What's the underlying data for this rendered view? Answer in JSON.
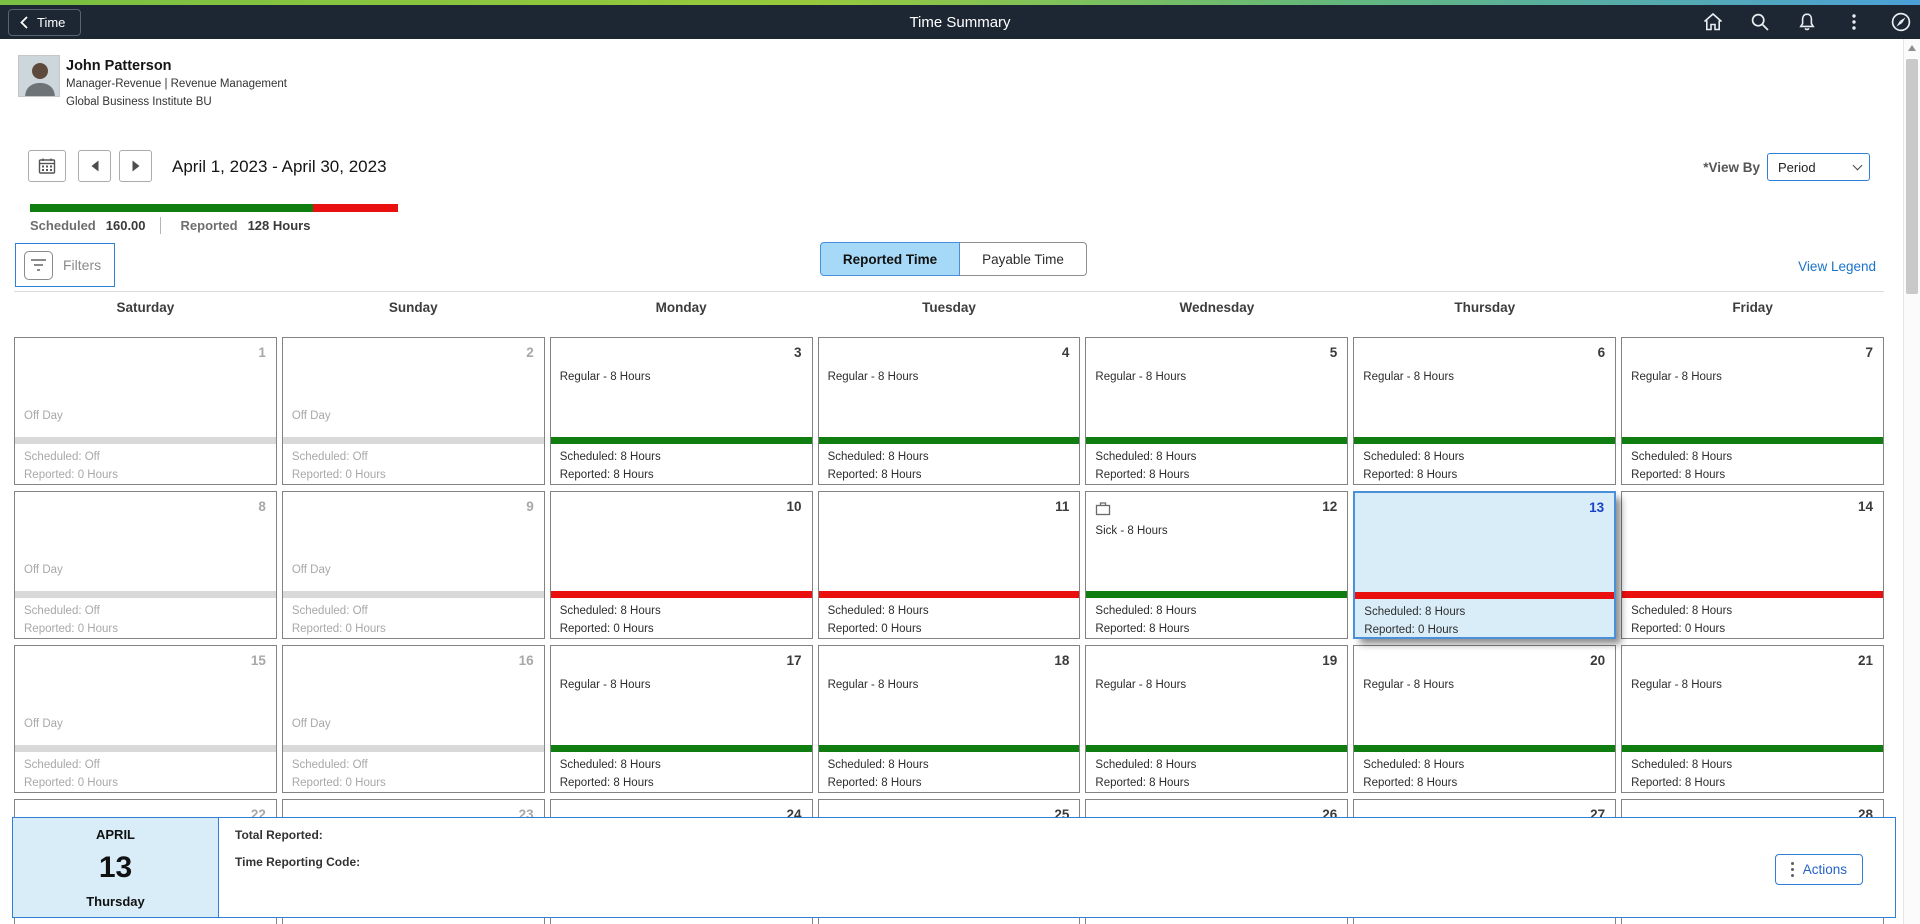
{
  "header": {
    "back_label": "Time",
    "title": "Time Summary",
    "icons": [
      "home-icon",
      "search-icon",
      "notifications-icon",
      "more-options-icon",
      "navbar-compass-icon"
    ]
  },
  "employee": {
    "name": "John Patterson",
    "job_title": "Manager-Revenue | Revenue Management",
    "business_unit": "Global Business Institute BU"
  },
  "period": {
    "range": "April 1, 2023 - April 30, 2023",
    "scheduled_label": "Scheduled",
    "scheduled_value": "160.00",
    "reported_label": "Reported",
    "reported_value": "128 Hours",
    "progress_green_pct": 77,
    "view_by_label": "*View By",
    "view_by_value": "Period"
  },
  "toolbar": {
    "filters_label": "Filters",
    "tabs": [
      {
        "label": "Reported Time",
        "active": true
      },
      {
        "label": "Payable Time",
        "active": false
      }
    ],
    "view_legend_label": "View Legend"
  },
  "calendar": {
    "day_headers": [
      "Saturday",
      "Sunday",
      "Monday",
      "Tuesday",
      "Wednesday",
      "Thursday",
      "Friday"
    ],
    "weeks": [
      [
        {
          "day": "1",
          "kind": "off",
          "event": "Off Day",
          "bar": "gray",
          "scheduled": "Scheduled: Off",
          "reported": "Reported: 0 Hours"
        },
        {
          "day": "2",
          "kind": "off",
          "event": "Off Day",
          "bar": "gray",
          "scheduled": "Scheduled: Off",
          "reported": "Reported: 0 Hours"
        },
        {
          "day": "3",
          "kind": "work",
          "event": "Regular - 8 Hours",
          "bar": "green",
          "scheduled": "Scheduled: 8 Hours",
          "reported": "Reported: 8 Hours"
        },
        {
          "day": "4",
          "kind": "work",
          "event": "Regular - 8 Hours",
          "bar": "green",
          "scheduled": "Scheduled: 8 Hours",
          "reported": "Reported: 8 Hours"
        },
        {
          "day": "5",
          "kind": "work",
          "event": "Regular - 8 Hours",
          "bar": "green",
          "scheduled": "Scheduled: 8 Hours",
          "reported": "Reported: 8 Hours"
        },
        {
          "day": "6",
          "kind": "work",
          "event": "Regular - 8 Hours",
          "bar": "green",
          "scheduled": "Scheduled: 8 Hours",
          "reported": "Reported: 8 Hours"
        },
        {
          "day": "7",
          "kind": "work",
          "event": "Regular - 8 Hours",
          "bar": "green",
          "scheduled": "Scheduled: 8 Hours",
          "reported": "Reported: 8 Hours"
        }
      ],
      [
        {
          "day": "8",
          "kind": "off",
          "event": "Off Day",
          "bar": "gray",
          "scheduled": "Scheduled: Off",
          "reported": "Reported: 0 Hours"
        },
        {
          "day": "9",
          "kind": "off",
          "event": "Off Day",
          "bar": "gray",
          "scheduled": "Scheduled: Off",
          "reported": "Reported: 0 Hours"
        },
        {
          "day": "10",
          "kind": "work",
          "event": "",
          "bar": "red",
          "scheduled": "Scheduled: 8 Hours",
          "reported": "Reported: 0 Hours"
        },
        {
          "day": "11",
          "kind": "work",
          "event": "",
          "bar": "red",
          "scheduled": "Scheduled: 8 Hours",
          "reported": "Reported: 0 Hours"
        },
        {
          "day": "12",
          "kind": "work",
          "icon": "briefcase-icon",
          "event": "Sick - 8 Hours",
          "bar": "green",
          "scheduled": "Scheduled: 8 Hours",
          "reported": "Reported: 8 Hours"
        },
        {
          "day": "13",
          "kind": "selected",
          "event": "",
          "bar": "red",
          "scheduled": "Scheduled: 8 Hours",
          "reported": "Reported: 0 Hours"
        },
        {
          "day": "14",
          "kind": "work",
          "event": "",
          "bar": "red",
          "scheduled": "Scheduled: 8 Hours",
          "reported": "Reported: 0 Hours"
        }
      ],
      [
        {
          "day": "15",
          "kind": "off",
          "event": "Off Day",
          "bar": "gray",
          "scheduled": "Scheduled: Off",
          "reported": "Reported: 0 Hours"
        },
        {
          "day": "16",
          "kind": "off",
          "event": "Off Day",
          "bar": "gray",
          "scheduled": "Scheduled: Off",
          "reported": "Reported: 0 Hours"
        },
        {
          "day": "17",
          "kind": "work",
          "event": "Regular - 8 Hours",
          "bar": "green",
          "scheduled": "Scheduled: 8 Hours",
          "reported": "Reported: 8 Hours"
        },
        {
          "day": "18",
          "kind": "work",
          "event": "Regular - 8 Hours",
          "bar": "green",
          "scheduled": "Scheduled: 8 Hours",
          "reported": "Reported: 8 Hours"
        },
        {
          "day": "19",
          "kind": "work",
          "event": "Regular - 8 Hours",
          "bar": "green",
          "scheduled": "Scheduled: 8 Hours",
          "reported": "Reported: 8 Hours"
        },
        {
          "day": "20",
          "kind": "work",
          "event": "Regular - 8 Hours",
          "bar": "green",
          "scheduled": "Scheduled: 8 Hours",
          "reported": "Reported: 8 Hours"
        },
        {
          "day": "21",
          "kind": "work",
          "event": "Regular - 8 Hours",
          "bar": "green",
          "scheduled": "Scheduled: 8 Hours",
          "reported": "Reported: 8 Hours"
        }
      ],
      [
        {
          "day": "22",
          "kind": "partial-off"
        },
        {
          "day": "23",
          "kind": "partial-off"
        },
        {
          "day": "24",
          "kind": "partial"
        },
        {
          "day": "25",
          "kind": "partial"
        },
        {
          "day": "26",
          "kind": "partial"
        },
        {
          "day": "27",
          "kind": "partial"
        },
        {
          "day": "28",
          "kind": "partial"
        }
      ]
    ]
  },
  "detail_panel": {
    "month": "APRIL",
    "day": "13",
    "weekday": "Thursday",
    "total_reported_label": "Total Reported:",
    "time_reporting_code_label": "Time Reporting Code:",
    "actions_label": "Actions"
  },
  "colors": {
    "accent_blue": "#2f7ed8",
    "selected_day_bg": "#d9edf9",
    "reported_green": "#0f7d0f",
    "missing_red": "#ea1010",
    "off_gray": "#d9d9d9",
    "header_bg": "#1d2633",
    "link_blue": "#1a73c9"
  }
}
